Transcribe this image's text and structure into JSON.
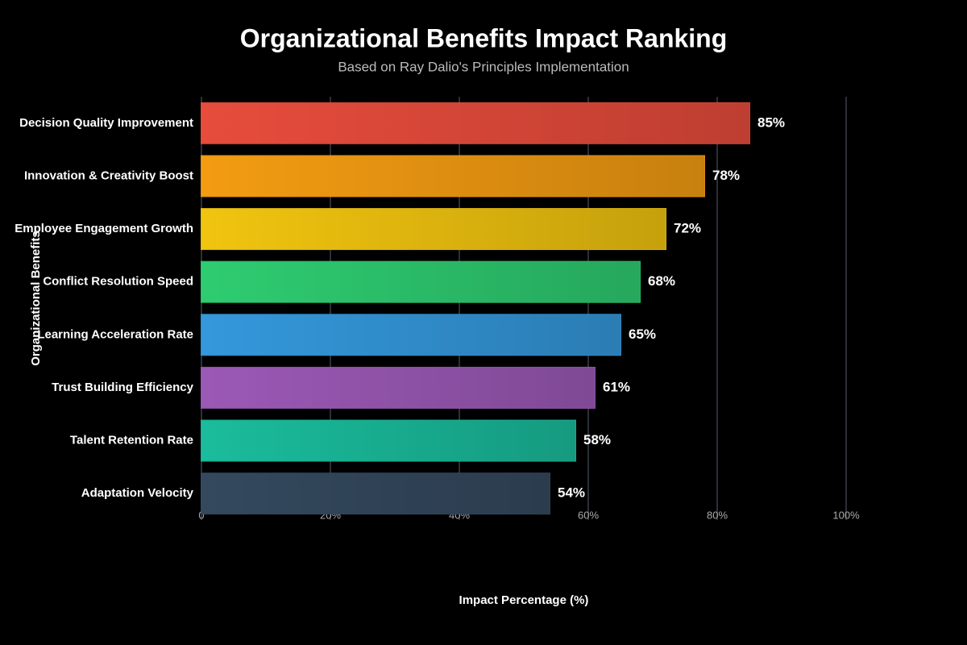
{
  "chart_data": {
    "type": "hbar",
    "title": "Organizational Benefits Impact Ranking",
    "subtitle": "Based on Ray Dalio's Principles Implementation",
    "x_label": "Impact Percentage (%)",
    "y_label": "Organizational Benefits",
    "categories": [
      "Decision Quality Improvement",
      "Innovation & Creativity Boost",
      "Employee Engagement Growth",
      "Conflict Resolution Speed",
      "Learning Acceleration Rate",
      "Trust Building Efficiency",
      "Talent Retention Rate",
      "Adaptation Velocity"
    ],
    "values": [
      85,
      78,
      72,
      68,
      65,
      61,
      58,
      54
    ],
    "value_labels": [
      "85%",
      "78%",
      "72%",
      "68%",
      "65%",
      "61%",
      "58%",
      "54%"
    ],
    "colors": [
      "#e74c3c",
      "#f39c12",
      "#f1c40f",
      "#2ecc71",
      "#3498db",
      "#9b59b6",
      "#1abc9c",
      "#34495e"
    ],
    "xlim": [
      0,
      100
    ],
    "xticks": [
      {
        "value": 0,
        "label": "0"
      },
      {
        "value": 20,
        "label": "20%"
      },
      {
        "value": 40,
        "label": "40%"
      },
      {
        "value": 60,
        "label": "60%"
      },
      {
        "value": 80,
        "label": "80%"
      },
      {
        "value": 100,
        "label": "100%"
      }
    ],
    "grid": true
  }
}
